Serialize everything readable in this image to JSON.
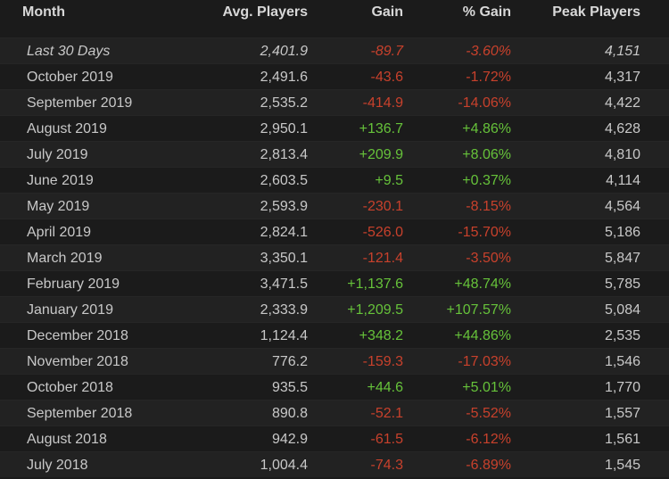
{
  "table": {
    "header": [
      "Month",
      "Avg. Players",
      "Gain",
      "% Gain",
      "Peak Players"
    ],
    "rows": [
      [
        "Last 30 Days",
        "2,401.9",
        "-89.7",
        "-3.60%",
        "4,151"
      ],
      [
        "October 2019",
        "2,491.6",
        "-43.6",
        "-1.72%",
        "4,317"
      ],
      [
        "September 2019",
        "2,535.2",
        "-414.9",
        "-14.06%",
        "4,422"
      ],
      [
        "August 2019",
        "2,950.1",
        "+136.7",
        "+4.86%",
        "4,628"
      ],
      [
        "July 2019",
        "2,813.4",
        "+209.9",
        "+8.06%",
        "4,810"
      ],
      [
        "June 2019",
        "2,603.5",
        "+9.5",
        "+0.37%",
        "4,114"
      ],
      [
        "May 2019",
        "2,593.9",
        "-230.1",
        "-8.15%",
        "4,564"
      ],
      [
        "April 2019",
        "2,824.1",
        "-526.0",
        "-15.70%",
        "5,186"
      ],
      [
        "March 2019",
        "3,350.1",
        "-121.4",
        "-3.50%",
        "5,847"
      ],
      [
        "February 2019",
        "3,471.5",
        "+1,137.6",
        "+48.74%",
        "5,785"
      ],
      [
        "January 2019",
        "2,333.9",
        "+1,209.5",
        "+107.57%",
        "5,084"
      ],
      [
        "December 2018",
        "1,124.4",
        "+348.2",
        "+44.86%",
        "2,535"
      ],
      [
        "November 2018",
        "776.2",
        "-159.3",
        "-17.03%",
        "1,546"
      ],
      [
        "October 2018",
        "935.5",
        "+44.6",
        "+5.01%",
        "1,770"
      ],
      [
        "September 2018",
        "890.8",
        "-52.1",
        "-5.52%",
        "1,557"
      ],
      [
        "August 2018",
        "942.9",
        "-61.5",
        "-6.12%",
        "1,561"
      ],
      [
        "July 2018",
        "1,004.4",
        "-74.3",
        "-6.89%",
        "1,545"
      ]
    ]
  }
}
